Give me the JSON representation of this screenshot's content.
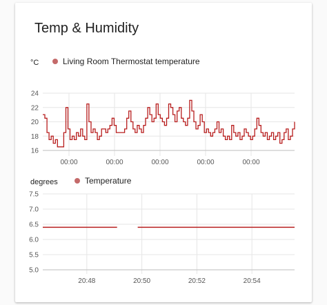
{
  "card": {
    "title": "Temp & Humidity"
  },
  "colors": {
    "series": "#b71c1c",
    "legend_dot": "#c46a6a",
    "grid": "#e6e6e6"
  },
  "chart_data": [
    {
      "type": "line",
      "unit": "°C",
      "legend": [
        {
          "name": "Living Room Thermostat temperature"
        }
      ],
      "ylim": [
        16,
        24
      ],
      "yticks": [
        "24",
        "22",
        "20",
        "18",
        "16"
      ],
      "xticks": [
        "00:00",
        "00:00",
        "00:00",
        "00:00",
        "00:00"
      ],
      "grid": true,
      "series": [
        {
          "name": "Living Room Thermostat temperature",
          "x": [
            0,
            1,
            2,
            3,
            4,
            5,
            6,
            7,
            8,
            9,
            10,
            11,
            12,
            13,
            14,
            15,
            16,
            17,
            18,
            19,
            20,
            21,
            22,
            23,
            24,
            25,
            26,
            27,
            28,
            29,
            30,
            31,
            32,
            33,
            34,
            35,
            36,
            37,
            38,
            39,
            40,
            41,
            42,
            43,
            44,
            45,
            46,
            47,
            48,
            49,
            50,
            51,
            52,
            53,
            54,
            55,
            56,
            57,
            58,
            59,
            60,
            61,
            62,
            63,
            64,
            65,
            66,
            67,
            68,
            69,
            70,
            71,
            72,
            73,
            74,
            75,
            76,
            77,
            78,
            79,
            80,
            81,
            82,
            83,
            84,
            85,
            86,
            87,
            88,
            89,
            90,
            91,
            92,
            93,
            94,
            95,
            96,
            97,
            98,
            99,
            100,
            101,
            102,
            103,
            104,
            105,
            106,
            107,
            108,
            109,
            110,
            111,
            112,
            113,
            114,
            115,
            116,
            117,
            118,
            119,
            120
          ],
          "values": [
            21,
            20.5,
            18.5,
            17.5,
            18,
            17,
            17.5,
            16.5,
            16.5,
            16.5,
            18.5,
            22,
            19,
            17.5,
            18,
            17.5,
            18.5,
            18,
            19,
            18,
            17.5,
            22.5,
            20,
            18.5,
            19,
            18.5,
            17.5,
            18,
            19,
            19,
            18.5,
            19,
            19.5,
            20.5,
            19.5,
            18.5,
            18.5,
            18.5,
            18.5,
            19,
            20.5,
            21.5,
            20,
            19,
            18.5,
            19.5,
            19,
            18.5,
            19.5,
            20.5,
            22,
            21,
            20,
            20.5,
            22.5,
            21,
            20.5,
            20,
            19.5,
            20.5,
            22.5,
            22,
            21,
            20,
            21.5,
            22,
            20.5,
            20,
            19.5,
            20.5,
            23,
            21.5,
            20,
            19,
            19.5,
            21,
            20,
            18.5,
            19,
            18.5,
            18,
            18.5,
            19,
            20,
            18.5,
            19,
            18,
            17.5,
            18,
            17.5,
            19.5,
            18.5,
            18,
            18.5,
            17.5,
            18,
            19,
            18.5,
            18,
            17.5,
            18,
            19,
            20.5,
            19.5,
            18.5,
            18,
            18.5,
            17.5,
            18,
            18.5,
            17.5,
            18,
            18.5,
            17,
            17.5,
            18.5,
            19,
            17.5,
            18,
            19,
            20
          ]
        }
      ]
    },
    {
      "type": "line",
      "unit": "degrees",
      "legend": [
        {
          "name": "Temperature"
        }
      ],
      "ylim": [
        5.0,
        7.5
      ],
      "yticks": [
        "7.5",
        "7.0",
        "6.5",
        "6.0",
        "5.5",
        "5.0"
      ],
      "xticks": [
        "20:48",
        "20:50",
        "20:52",
        "20:54"
      ],
      "xtick_minutes": [
        48,
        50,
        52,
        54
      ],
      "xlim_minutes": [
        46.4,
        55.55
      ],
      "grid": true,
      "series": [
        {
          "name": "Temperature",
          "segments": [
            {
              "x": [
                46.4,
                49.1
              ],
              "values": [
                6.4,
                6.4
              ]
            },
            {
              "x": [
                49.85,
                55.55
              ],
              "values": [
                6.4,
                6.4
              ]
            }
          ]
        }
      ]
    }
  ]
}
